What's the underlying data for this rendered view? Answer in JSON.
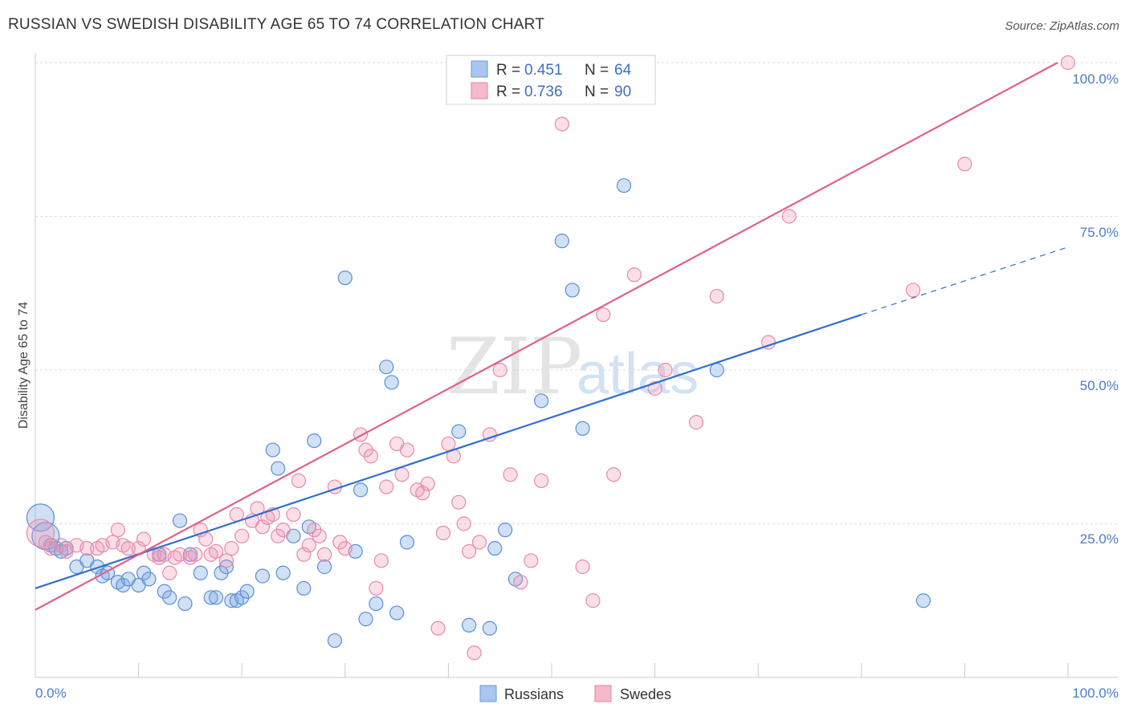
{
  "title": "RUSSIAN VS SWEDISH DISABILITY AGE 65 TO 74 CORRELATION CHART",
  "source": "Source: ZipAtlas.com",
  "watermark": {
    "zip": "ZIP",
    "atlas": "atlas"
  },
  "legend": {
    "rows": [
      {
        "r_label": "R = ",
        "r_value": "0.451",
        "n_label": "N = ",
        "n_value": "64",
        "color": "#a8c6ee",
        "stroke": "#6b9bd8"
      },
      {
        "r_label": "R = ",
        "r_value": "0.736",
        "n_label": "N = ",
        "n_value": "90",
        "color": "#f6b8cb",
        "stroke": "#e8829f"
      }
    ]
  },
  "colors": {
    "russians_fill": "rgba(120,165,225,0.35)",
    "russians_stroke": "#5b8fd6",
    "russians_line": "#2f6fcf",
    "swedes_fill": "rgba(240,150,180,0.30)",
    "swedes_stroke": "#e88aa8",
    "swedes_line": "#e0608a",
    "grid": "#dddddd",
    "tick_text": "#4a7cc7"
  },
  "chart_data": {
    "type": "scatter",
    "title": "RUSSIAN VS SWEDISH DISABILITY AGE 65 TO 74 CORRELATION CHART",
    "xlabel": "",
    "ylabel": "Disability Age 65 to 74",
    "xlim": [
      0,
      100
    ],
    "ylim": [
      0,
      100
    ],
    "x_tick_labels": [
      "0.0%",
      "100.0%"
    ],
    "y_tick_labels": [
      "25.0%",
      "50.0%",
      "75.0%",
      "100.0%"
    ],
    "y_ticks": [
      25,
      50,
      75,
      100
    ],
    "grid": true,
    "legend_position": "top-center",
    "series": [
      {
        "name": "Russians",
        "r": 0.451,
        "n": 64,
        "trend": {
          "x0": 0,
          "y0": 14.5,
          "x1": 80,
          "y1": 59,
          "dashed_to_x": 100,
          "dashed_to_y": 70
        },
        "points": [
          [
            0.5,
            26,
            "L"
          ],
          [
            1,
            23,
            "L"
          ],
          [
            1.5,
            21.5,
            ""
          ],
          [
            2,
            21,
            ""
          ],
          [
            2.5,
            20.5,
            ""
          ],
          [
            3,
            21,
            ""
          ],
          [
            4,
            18,
            ""
          ],
          [
            5,
            19,
            ""
          ],
          [
            6,
            18,
            ""
          ],
          [
            6.5,
            16.5,
            ""
          ],
          [
            7,
            17,
            ""
          ],
          [
            8,
            15.5,
            ""
          ],
          [
            8.5,
            15,
            ""
          ],
          [
            9,
            16,
            ""
          ],
          [
            10,
            15,
            ""
          ],
          [
            10.5,
            17,
            ""
          ],
          [
            11,
            16,
            ""
          ],
          [
            12,
            20,
            ""
          ],
          [
            12.5,
            14,
            ""
          ],
          [
            13,
            13,
            ""
          ],
          [
            14,
            25.5,
            ""
          ],
          [
            14.5,
            12,
            ""
          ],
          [
            15,
            20,
            ""
          ],
          [
            16,
            17,
            ""
          ],
          [
            17,
            13,
            ""
          ],
          [
            17.5,
            13,
            ""
          ],
          [
            18,
            17,
            ""
          ],
          [
            18.5,
            18,
            ""
          ],
          [
            19,
            12.5,
            ""
          ],
          [
            19.5,
            12.5,
            ""
          ],
          [
            20,
            13,
            ""
          ],
          [
            20.5,
            14,
            ""
          ],
          [
            22,
            16.5,
            ""
          ],
          [
            23,
            37,
            ""
          ],
          [
            23.5,
            34,
            ""
          ],
          [
            24,
            17,
            ""
          ],
          [
            25,
            23,
            ""
          ],
          [
            26,
            14.5,
            ""
          ],
          [
            26.5,
            24.5,
            ""
          ],
          [
            27,
            38.5,
            ""
          ],
          [
            28,
            18,
            ""
          ],
          [
            29,
            6,
            ""
          ],
          [
            30,
            65,
            ""
          ],
          [
            31,
            20.5,
            ""
          ],
          [
            31.5,
            30.5,
            ""
          ],
          [
            32,
            9.5,
            ""
          ],
          [
            33,
            12,
            ""
          ],
          [
            34,
            50.5,
            ""
          ],
          [
            34.5,
            48,
            ""
          ],
          [
            35,
            10.5,
            ""
          ],
          [
            36,
            22,
            ""
          ],
          [
            41,
            40,
            ""
          ],
          [
            42,
            8.5,
            ""
          ],
          [
            44,
            8,
            ""
          ],
          [
            44.5,
            21,
            ""
          ],
          [
            45.5,
            24,
            ""
          ],
          [
            46.5,
            16,
            ""
          ],
          [
            49,
            45,
            ""
          ],
          [
            51,
            71,
            ""
          ],
          [
            52,
            63,
            ""
          ],
          [
            53,
            40.5,
            ""
          ],
          [
            57,
            80,
            ""
          ],
          [
            66,
            50,
            ""
          ],
          [
            86,
            12.5,
            ""
          ]
        ]
      },
      {
        "name": "Swedes",
        "r": 0.736,
        "n": 90,
        "trend": {
          "x0": 0,
          "y0": 11,
          "x1": 99,
          "y1": 100
        },
        "points": [
          [
            0.5,
            23.5,
            "L"
          ],
          [
            1,
            22,
            ""
          ],
          [
            1.5,
            21,
            ""
          ],
          [
            2.5,
            21.5,
            ""
          ],
          [
            3,
            20.5,
            ""
          ],
          [
            4,
            21.5,
            ""
          ],
          [
            5,
            21,
            ""
          ],
          [
            6,
            21,
            ""
          ],
          [
            6.5,
            21.5,
            ""
          ],
          [
            7.5,
            22,
            ""
          ],
          [
            8,
            24,
            ""
          ],
          [
            8.5,
            21.5,
            ""
          ],
          [
            9,
            21,
            ""
          ],
          [
            10,
            21,
            ""
          ],
          [
            10.5,
            22.5,
            ""
          ],
          [
            11.5,
            20,
            ""
          ],
          [
            12,
            19.5,
            ""
          ],
          [
            12.5,
            20,
            ""
          ],
          [
            13,
            17,
            ""
          ],
          [
            13.5,
            19.5,
            ""
          ],
          [
            14,
            20,
            ""
          ],
          [
            15,
            19.5,
            ""
          ],
          [
            15.5,
            20,
            ""
          ],
          [
            16,
            24,
            ""
          ],
          [
            16.5,
            22.5,
            ""
          ],
          [
            17,
            20,
            ""
          ],
          [
            17.5,
            20.5,
            ""
          ],
          [
            18.5,
            19,
            ""
          ],
          [
            19,
            21,
            ""
          ],
          [
            19.5,
            26.5,
            ""
          ],
          [
            20,
            23,
            ""
          ],
          [
            21,
            25.5,
            ""
          ],
          [
            21.5,
            27.5,
            ""
          ],
          [
            22,
            24.5,
            ""
          ],
          [
            22.5,
            26,
            ""
          ],
          [
            23,
            26.5,
            ""
          ],
          [
            23.5,
            23,
            ""
          ],
          [
            24,
            24,
            ""
          ],
          [
            25,
            26.5,
            ""
          ],
          [
            25.5,
            32,
            ""
          ],
          [
            26,
            20,
            ""
          ],
          [
            26.5,
            21.5,
            ""
          ],
          [
            27,
            24,
            ""
          ],
          [
            27.5,
            23,
            ""
          ],
          [
            28,
            20,
            ""
          ],
          [
            29,
            31,
            ""
          ],
          [
            29.5,
            22,
            ""
          ],
          [
            30,
            21,
            ""
          ],
          [
            31.5,
            39.5,
            ""
          ],
          [
            32,
            37,
            ""
          ],
          [
            32.5,
            36,
            ""
          ],
          [
            33,
            14.5,
            ""
          ],
          [
            33.5,
            19,
            ""
          ],
          [
            34,
            31,
            ""
          ],
          [
            35,
            38,
            ""
          ],
          [
            35.5,
            33,
            ""
          ],
          [
            36,
            37,
            ""
          ],
          [
            37,
            30.5,
            ""
          ],
          [
            37.5,
            30,
            ""
          ],
          [
            38,
            31.5,
            ""
          ],
          [
            39,
            8,
            ""
          ],
          [
            39.5,
            23.5,
            ""
          ],
          [
            40,
            38,
            ""
          ],
          [
            40.5,
            36,
            ""
          ],
          [
            41,
            28.5,
            ""
          ],
          [
            41.5,
            25,
            ""
          ],
          [
            42,
            20.5,
            ""
          ],
          [
            42.5,
            4,
            ""
          ],
          [
            43,
            22,
            ""
          ],
          [
            44,
            39.5,
            ""
          ],
          [
            45,
            50,
            ""
          ],
          [
            46,
            33,
            ""
          ],
          [
            47,
            15.5,
            ""
          ],
          [
            48,
            19,
            ""
          ],
          [
            49,
            32,
            ""
          ],
          [
            51,
            90,
            ""
          ],
          [
            53,
            18,
            ""
          ],
          [
            54,
            12.5,
            ""
          ],
          [
            55,
            59,
            ""
          ],
          [
            56,
            33,
            ""
          ],
          [
            58,
            65.5,
            ""
          ],
          [
            60,
            47,
            ""
          ],
          [
            61,
            50,
            ""
          ],
          [
            64,
            41.5,
            ""
          ],
          [
            66,
            62,
            ""
          ],
          [
            71,
            54.5,
            ""
          ],
          [
            73,
            75,
            ""
          ],
          [
            85,
            63,
            ""
          ],
          [
            90,
            83.5,
            ""
          ],
          [
            100,
            100,
            ""
          ]
        ]
      }
    ]
  },
  "bottom_legend": [
    {
      "label": "Russians",
      "color": "#a8c6ee",
      "stroke": "#6b9bd8"
    },
    {
      "label": "Swedes",
      "color": "#f6b8cb",
      "stroke": "#e8829f"
    }
  ]
}
